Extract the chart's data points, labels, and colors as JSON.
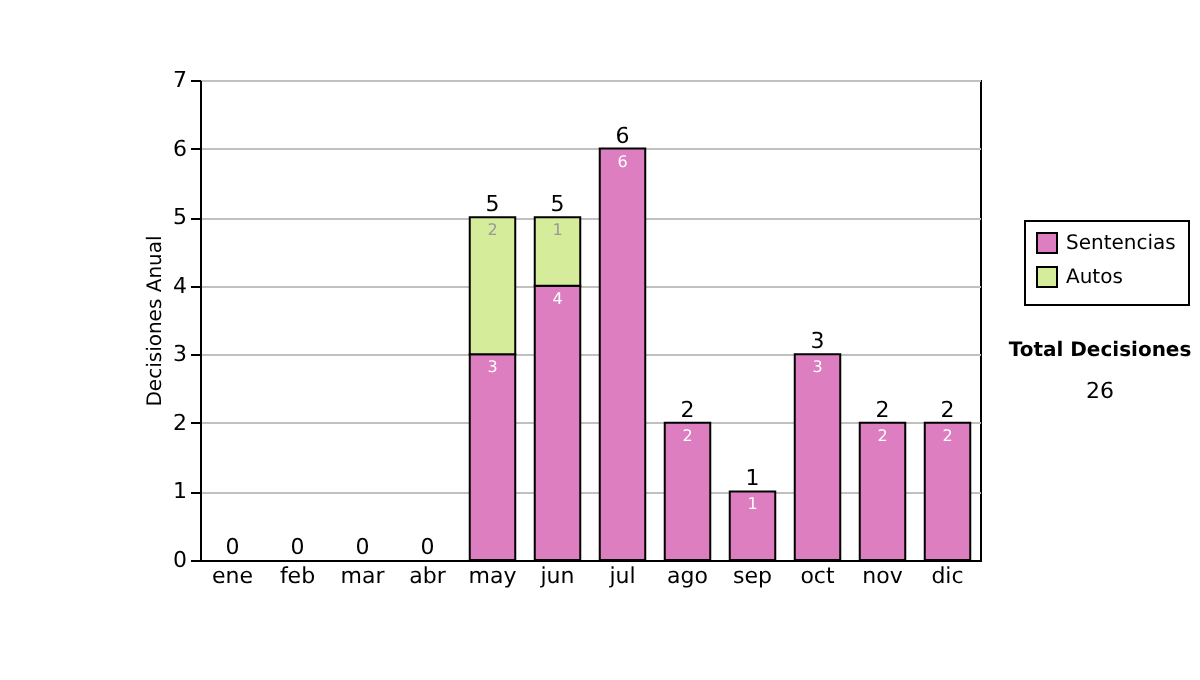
{
  "chart_data": {
    "type": "bar",
    "stacked": true,
    "ylabel": "Decisiones Anual",
    "categories": [
      "ene",
      "feb",
      "mar",
      "abr",
      "may",
      "jun",
      "jul",
      "ago",
      "sep",
      "oct",
      "nov",
      "dic"
    ],
    "series": [
      {
        "name": "Sentencias",
        "color": "#dd7ec0",
        "values": [
          0,
          0,
          0,
          0,
          3,
          4,
          6,
          2,
          1,
          3,
          2,
          2
        ],
        "value_labels": [
          null,
          null,
          null,
          null,
          "3",
          "4",
          "6",
          "2",
          "1",
          "3",
          "2",
          "2"
        ]
      },
      {
        "name": "Autos",
        "color": "#d5ec9a",
        "values": [
          0,
          0,
          0,
          0,
          2,
          1,
          0,
          0,
          0,
          0,
          0,
          0
        ],
        "value_labels": [
          null,
          null,
          null,
          null,
          "2",
          "1",
          null,
          null,
          null,
          null,
          null,
          null
        ]
      }
    ],
    "totals": [
      "0",
      "0",
      "0",
      "0",
      "5",
      "5",
      "6",
      "2",
      "1",
      "3",
      "2",
      "2"
    ],
    "ylim": [
      0,
      7
    ],
    "yticks": [
      0,
      1,
      2,
      3,
      4,
      5,
      6,
      7
    ],
    "grid": "y",
    "legend": "right",
    "annotations": [
      "Total Decisiones",
      "26"
    ]
  }
}
